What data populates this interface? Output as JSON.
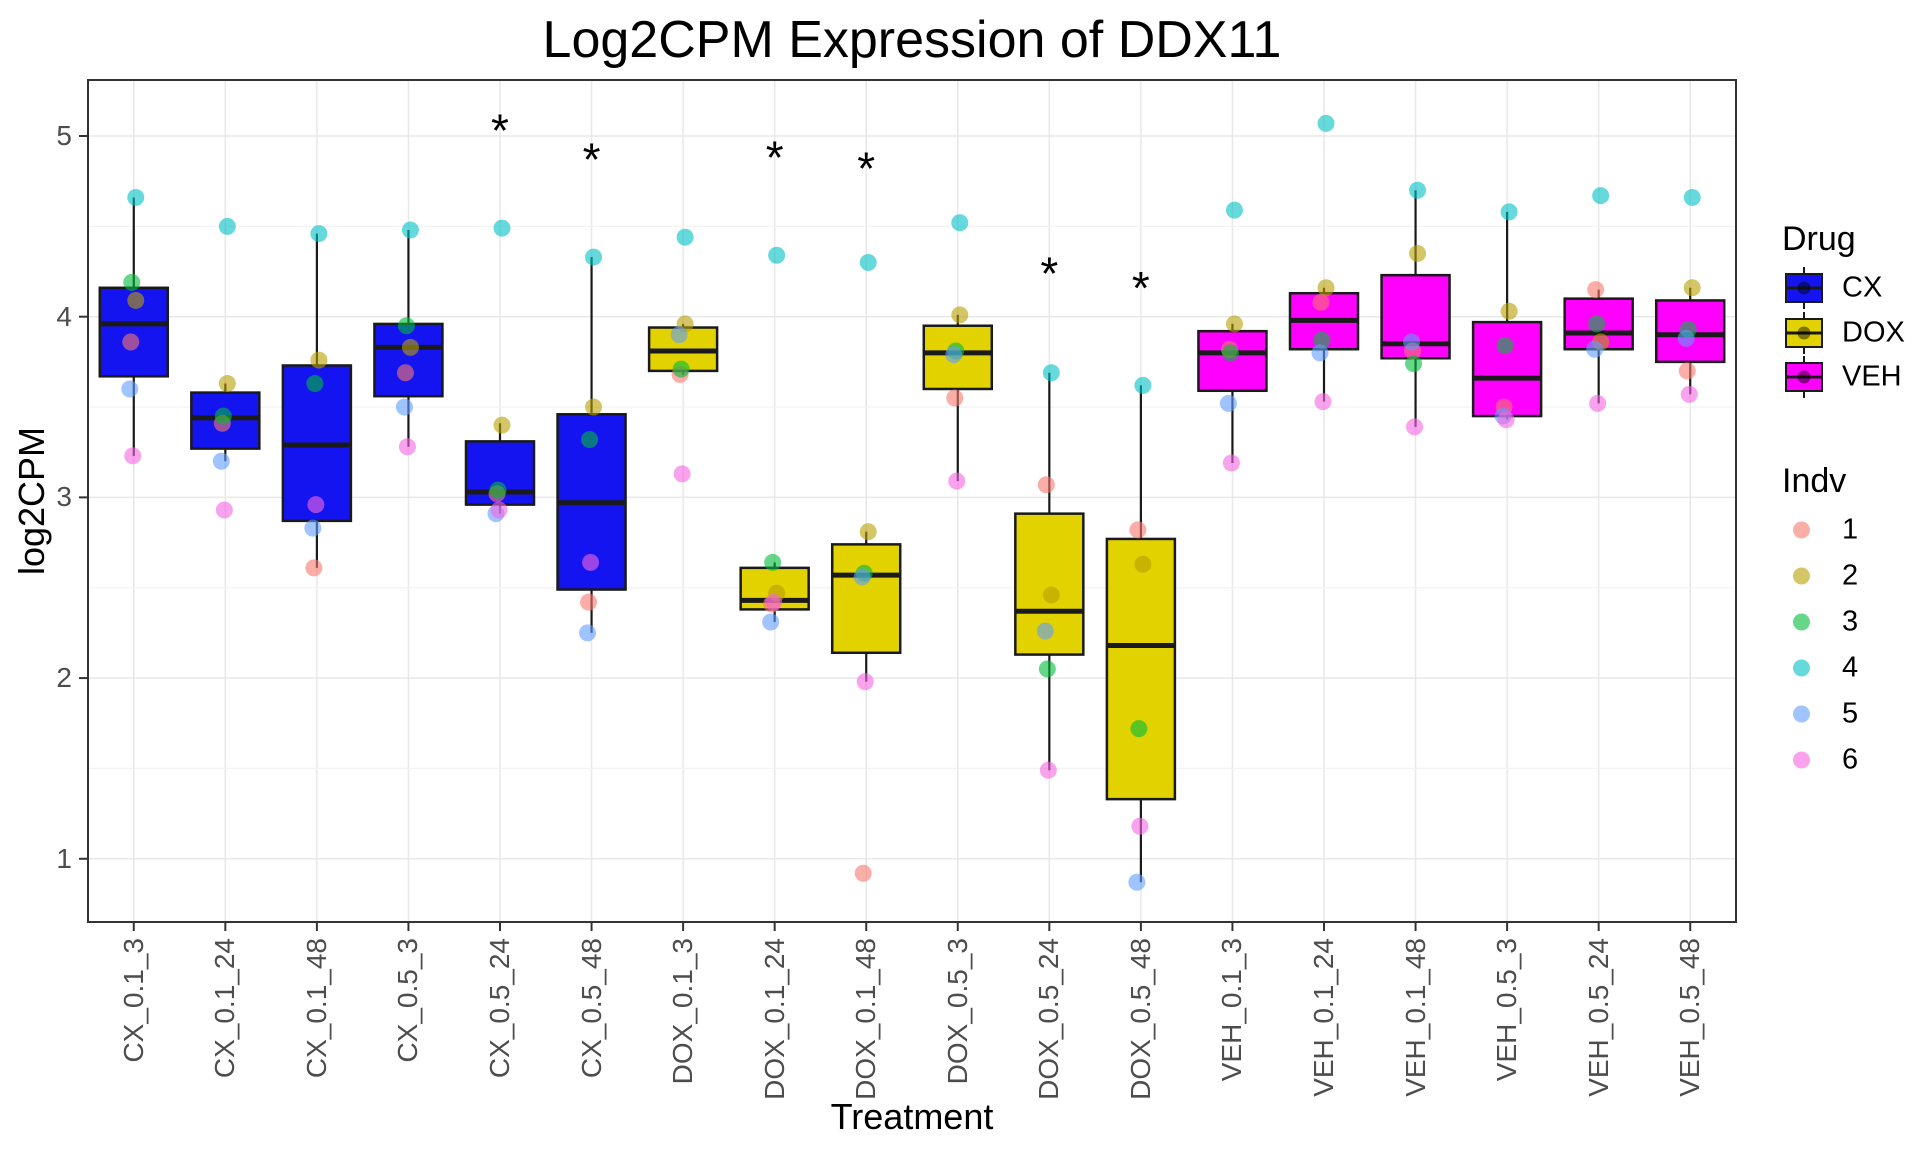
{
  "title": "Log2CPM Expression of DDX11",
  "axes": {
    "x_title": "Treatment",
    "y_title": "log2CPM",
    "y_ticks": [
      1,
      2,
      3,
      4,
      5
    ],
    "y_minor_ticks": [
      1.5,
      2.5,
      3.5,
      4.5
    ],
    "y_domain": [
      0.65,
      5.31
    ],
    "x_labels": [
      "CX_0.1_3",
      "CX_0.1_24",
      "CX_0.1_48",
      "CX_0.5_3",
      "CX_0.5_24",
      "CX_0.5_48",
      "DOX_0.1_3",
      "DOX_0.1_24",
      "DOX_0.1_48",
      "DOX_0.5_3",
      "DOX_0.5_24",
      "DOX_0.5_48",
      "VEH_0.1_3",
      "VEH_0.1_24",
      "VEH_0.1_48",
      "VEH_0.5_3",
      "VEH_0.5_24",
      "VEH_0.5_48"
    ]
  },
  "legend": {
    "drug_title": "Drug",
    "drugs": [
      {
        "label": "CX",
        "color": "#1414F0"
      },
      {
        "label": "DOX",
        "color": "#E2D300"
      },
      {
        "label": "VEH",
        "color": "#FF00FF"
      }
    ],
    "indv_title": "Indv",
    "indv": [
      {
        "label": "1",
        "color": "#F8766D"
      },
      {
        "label": "2",
        "color": "#B79F00"
      },
      {
        "label": "3",
        "color": "#00BA38"
      },
      {
        "label": "4",
        "color": "#00BFC4"
      },
      {
        "label": "5",
        "color": "#619CFF"
      },
      {
        "label": "6",
        "color": "#F564E2"
      }
    ]
  },
  "chart_data": {
    "type": "boxplot-jitter",
    "xlabel": "Treatment",
    "ylabel": "log2CPM",
    "ylim": [
      0.65,
      5.31
    ],
    "grid": true,
    "legend_position": "right",
    "groups": [
      {
        "label": "CX_0.1_3",
        "drug": "CX",
        "whisker_low": 3.23,
        "q1": 3.67,
        "median": 3.96,
        "q3": 4.16,
        "whisker_high": 4.66,
        "points": {
          "1": 3.86,
          "2": 4.09,
          "3": 4.19,
          "4": 4.66,
          "5": 3.6,
          "6": 3.23
        }
      },
      {
        "label": "CX_0.1_24",
        "drug": "CX",
        "whisker_low": 3.2,
        "q1": 3.27,
        "median": 3.44,
        "q3": 3.58,
        "whisker_high": 3.63,
        "points": {
          "1": 3.41,
          "2": 3.63,
          "3": 3.45,
          "4": 4.5,
          "5": 3.2,
          "6": 2.93
        }
      },
      {
        "label": "CX_0.1_48",
        "drug": "CX",
        "whisker_low": 2.61,
        "q1": 2.87,
        "median": 3.29,
        "q3": 3.73,
        "whisker_high": 4.46,
        "points": {
          "1": 2.61,
          "2": 3.76,
          "3": 3.63,
          "4": 4.46,
          "5": 2.83,
          "6": 2.96
        }
      },
      {
        "label": "CX_0.5_3",
        "drug": "CX",
        "whisker_low": 3.28,
        "q1": 3.56,
        "median": 3.83,
        "q3": 3.96,
        "whisker_high": 4.48,
        "points": {
          "1": 3.69,
          "2": 3.83,
          "3": 3.95,
          "4": 4.48,
          "5": 3.5,
          "6": 3.28
        }
      },
      {
        "label": "CX_0.5_24",
        "drug": "CX",
        "whisker_low": 2.91,
        "q1": 2.96,
        "median": 3.03,
        "q3": 3.31,
        "whisker_high": 3.41,
        "points": {
          "1": 3.02,
          "2": 3.4,
          "3": 3.04,
          "4": 4.49,
          "5": 2.91,
          "6": 2.93
        }
      },
      {
        "label": "CX_0.5_48",
        "drug": "CX",
        "whisker_low": 2.25,
        "q1": 2.49,
        "median": 2.97,
        "q3": 3.46,
        "whisker_high": 4.33,
        "points": {
          "1": 2.42,
          "2": 3.5,
          "3": 3.32,
          "4": 4.33,
          "5": 2.25,
          "6": 2.64
        }
      },
      {
        "label": "DOX_0.1_3",
        "drug": "DOX",
        "whisker_low": 3.68,
        "q1": 3.7,
        "median": 3.81,
        "q3": 3.94,
        "whisker_high": 3.96,
        "points": {
          "1": 3.68,
          "2": 3.96,
          "3": 3.71,
          "4": 4.44,
          "5": 3.9,
          "6": 3.13
        }
      },
      {
        "label": "DOX_0.1_24",
        "drug": "DOX",
        "whisker_low": 2.31,
        "q1": 2.38,
        "median": 2.43,
        "q3": 2.61,
        "whisker_high": 2.64,
        "points": {
          "1": 2.41,
          "2": 2.47,
          "3": 2.64,
          "4": 4.34,
          "5": 2.31,
          "6": 2.42
        }
      },
      {
        "label": "DOX_0.1_48",
        "drug": "DOX",
        "whisker_low": 1.98,
        "q1": 2.14,
        "median": 2.57,
        "q3": 2.74,
        "whisker_high": 2.81,
        "points": {
          "1": 0.92,
          "2": 2.81,
          "3": 2.58,
          "4": 4.3,
          "5": 2.56,
          "6": 1.98
        }
      },
      {
        "label": "DOX_0.5_3",
        "drug": "DOX",
        "whisker_low": 3.09,
        "q1": 3.6,
        "median": 3.8,
        "q3": 3.95,
        "whisker_high": 4.01,
        "points": {
          "1": 3.55,
          "2": 4.01,
          "3": 3.81,
          "4": 4.52,
          "5": 3.79,
          "6": 3.09
        }
      },
      {
        "label": "DOX_0.5_24",
        "drug": "DOX",
        "whisker_low": 1.49,
        "q1": 2.13,
        "median": 2.37,
        "q3": 2.91,
        "whisker_high": 3.69,
        "points": {
          "1": 3.07,
          "2": 2.46,
          "3": 2.05,
          "4": 3.69,
          "5": 2.26,
          "6": 1.49
        }
      },
      {
        "label": "DOX_0.5_48",
        "drug": "DOX",
        "whisker_low": 0.87,
        "q1": 1.33,
        "median": 2.18,
        "q3": 2.77,
        "whisker_high": 3.62,
        "points": {
          "1": 2.82,
          "2": 2.63,
          "3": 1.72,
          "4": 3.62,
          "5": 0.87,
          "6": 1.18
        }
      },
      {
        "label": "VEH_0.1_3",
        "drug": "VEH",
        "whisker_low": 3.19,
        "q1": 3.59,
        "median": 3.8,
        "q3": 3.92,
        "whisker_high": 3.96,
        "points": {
          "1": 3.82,
          "2": 3.96,
          "3": 3.8,
          "4": 4.59,
          "5": 3.52,
          "6": 3.19
        }
      },
      {
        "label": "VEH_0.1_24",
        "drug": "VEH",
        "whisker_low": 3.53,
        "q1": 3.82,
        "median": 3.98,
        "q3": 4.13,
        "whisker_high": 4.16,
        "points": {
          "1": 4.08,
          "2": 4.16,
          "3": 3.87,
          "4": 5.07,
          "5": 3.8,
          "6": 3.53
        }
      },
      {
        "label": "VEH_0.1_48",
        "drug": "VEH",
        "whisker_low": 3.39,
        "q1": 3.77,
        "median": 3.85,
        "q3": 4.23,
        "whisker_high": 4.7,
        "points": {
          "1": 3.81,
          "2": 4.35,
          "3": 3.74,
          "4": 4.7,
          "5": 3.86,
          "6": 3.39
        }
      },
      {
        "label": "VEH_0.5_3",
        "drug": "VEH",
        "whisker_low": 3.43,
        "q1": 3.45,
        "median": 3.66,
        "q3": 3.97,
        "whisker_high": 4.58,
        "points": {
          "1": 3.5,
          "2": 4.03,
          "3": 3.84,
          "4": 4.58,
          "5": 3.45,
          "6": 3.43
        }
      },
      {
        "label": "VEH_0.5_24",
        "drug": "VEH",
        "whisker_low": 3.52,
        "q1": 3.82,
        "median": 3.91,
        "q3": 4.1,
        "whisker_high": 4.15,
        "points": {
          "1": 4.15,
          "2": 3.86,
          "3": 3.96,
          "4": 4.67,
          "5": 3.82,
          "6": 3.52
        }
      },
      {
        "label": "VEH_0.5_48",
        "drug": "VEH",
        "whisker_low": 3.57,
        "q1": 3.75,
        "median": 3.9,
        "q3": 4.09,
        "whisker_high": 4.16,
        "points": {
          "1": 3.7,
          "2": 4.16,
          "3": 3.93,
          "4": 4.66,
          "5": 3.88,
          "6": 3.57
        }
      }
    ],
    "significance_asterisks": [
      {
        "group": "CX_0.5_24",
        "value": 5.03
      },
      {
        "group": "CX_0.5_48",
        "value": 4.87
      },
      {
        "group": "DOX_0.1_24",
        "value": 4.88
      },
      {
        "group": "DOX_0.1_48",
        "value": 4.82
      },
      {
        "group": "DOX_0.5_24",
        "value": 4.24
      },
      {
        "group": "DOX_0.5_48",
        "value": 4.16
      }
    ]
  },
  "style": {
    "box_border": "#1A1A1A",
    "grid_major": "#E8E8E8",
    "grid_minor": "#F3F3F3",
    "panel_border": "#333333",
    "tick_color": "#333333",
    "axis_text": "#4D4D4D",
    "point_opacity": 0.6
  }
}
